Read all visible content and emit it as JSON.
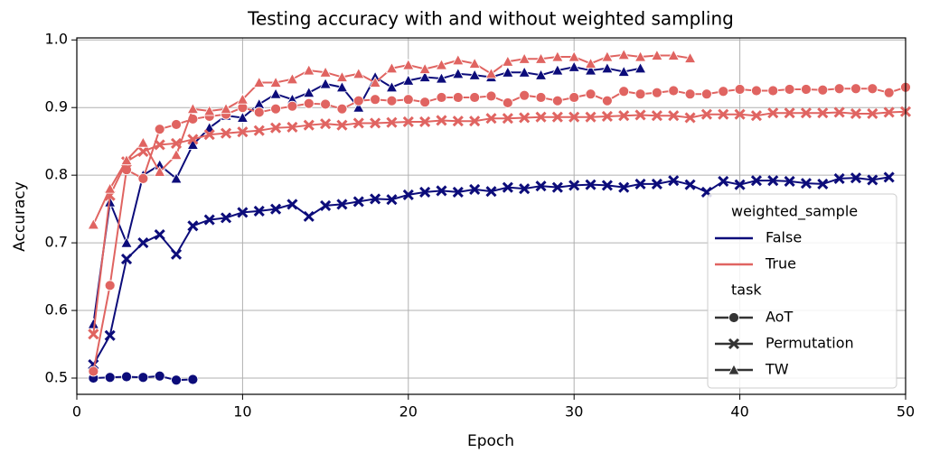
{
  "chart_data": {
    "type": "line",
    "title": "Testing accuracy with and without weighted sampling",
    "x_label": "Epoch",
    "y_label": "Accuracy",
    "xlim": [
      0,
      50
    ],
    "xticks": [
      0,
      10,
      20,
      30,
      40,
      50
    ],
    "ylim": [
      0.476,
      1.003
    ],
    "yticks": [
      0.5,
      0.6,
      0.7,
      0.8,
      0.9,
      {
        "value": 1,
        "label": "1.0"
      }
    ],
    "grid": true,
    "legend": {
      "position": "lower right",
      "hue_title": "weighted_sample",
      "hues": [
        {
          "label": "False",
          "color": "#0c0c7a"
        },
        {
          "label": "True",
          "color": "#e06461"
        }
      ],
      "style_title": "task",
      "styles": [
        {
          "label": "AoT",
          "marker": "circle"
        },
        {
          "label": "Permutation",
          "marker": "x"
        },
        {
          "label": "TW",
          "marker": "triangle"
        }
      ]
    },
    "series": [
      {
        "hue": 0,
        "style": 0,
        "x": [
          1,
          2,
          3,
          4,
          5,
          6,
          7
        ],
        "values": [
          0.5,
          0.501,
          0.502,
          0.501,
          0.503,
          0.497,
          0.498
        ]
      },
      {
        "hue": 0,
        "style": 1,
        "x": [
          1,
          2,
          3,
          4,
          5,
          6,
          7,
          8,
          9,
          10,
          11,
          12,
          13,
          14,
          15,
          16,
          17,
          18,
          19,
          20,
          21,
          22,
          23,
          24,
          25,
          26,
          27,
          28,
          29,
          30,
          31,
          32,
          33,
          34,
          35,
          36,
          37,
          38,
          39,
          40,
          41,
          42,
          43,
          44,
          45,
          46,
          47,
          48,
          49
        ],
        "values": [
          0.52,
          0.563,
          0.676,
          0.7,
          0.712,
          0.683,
          0.725,
          0.734,
          0.737,
          0.745,
          0.747,
          0.75,
          0.757,
          0.739,
          0.755,
          0.757,
          0.761,
          0.765,
          0.764,
          0.771,
          0.775,
          0.777,
          0.775,
          0.779,
          0.776,
          0.782,
          0.78,
          0.784,
          0.782,
          0.785,
          0.786,
          0.785,
          0.782,
          0.787,
          0.787,
          0.792,
          0.786,
          0.775,
          0.791,
          0.786,
          0.792,
          0.792,
          0.791,
          0.788,
          0.787,
          0.795,
          0.796,
          0.793,
          0.797
        ]
      },
      {
        "hue": 0,
        "style": 2,
        "x": [
          1,
          2,
          3,
          4,
          5,
          6,
          7,
          8,
          9,
          10,
          11,
          12,
          13,
          14,
          15,
          16,
          17,
          18,
          19,
          20,
          21,
          22,
          23,
          24,
          25,
          26,
          27,
          28,
          29,
          30,
          31,
          32,
          33,
          34
        ],
        "values": [
          0.58,
          0.76,
          0.7,
          0.8,
          0.815,
          0.795,
          0.845,
          0.87,
          0.888,
          0.885,
          0.905,
          0.92,
          0.912,
          0.922,
          0.935,
          0.93,
          0.9,
          0.945,
          0.93,
          0.94,
          0.945,
          0.943,
          0.95,
          0.948,
          0.945,
          0.952,
          0.952,
          0.948,
          0.955,
          0.96,
          0.955,
          0.958,
          0.953,
          0.958
        ]
      },
      {
        "hue": 1,
        "style": 0,
        "x": [
          1,
          2,
          3,
          4,
          5,
          6,
          7,
          8,
          9,
          10,
          11,
          12,
          13,
          14,
          15,
          16,
          17,
          18,
          19,
          20,
          21,
          22,
          23,
          24,
          25,
          26,
          27,
          28,
          29,
          30,
          31,
          32,
          33,
          34,
          35,
          36,
          37,
          38,
          39,
          40,
          41,
          42,
          43,
          44,
          45,
          46,
          47,
          48,
          49,
          50
        ],
        "values": [
          0.51,
          0.637,
          0.808,
          0.795,
          0.868,
          0.875,
          0.883,
          0.887,
          0.89,
          0.9,
          0.893,
          0.898,
          0.902,
          0.906,
          0.905,
          0.898,
          0.91,
          0.912,
          0.91,
          0.912,
          0.908,
          0.915,
          0.915,
          0.915,
          0.917,
          0.907,
          0.918,
          0.915,
          0.91,
          0.915,
          0.92,
          0.91,
          0.924,
          0.92,
          0.922,
          0.925,
          0.92,
          0.92,
          0.924,
          0.927,
          0.925,
          0.925,
          0.927,
          0.927,
          0.926,
          0.928,
          0.928,
          0.928,
          0.922,
          0.93
        ]
      },
      {
        "hue": 1,
        "style": 1,
        "x": [
          1,
          2,
          3,
          4,
          5,
          6,
          7,
          8,
          9,
          10,
          11,
          12,
          13,
          14,
          15,
          16,
          17,
          18,
          19,
          20,
          21,
          22,
          23,
          24,
          25,
          26,
          27,
          28,
          29,
          30,
          31,
          32,
          33,
          34,
          35,
          36,
          37,
          38,
          39,
          40,
          41,
          42,
          43,
          44,
          45,
          46,
          47,
          48,
          49,
          50
        ],
        "values": [
          0.565,
          0.77,
          0.82,
          0.835,
          0.845,
          0.847,
          0.853,
          0.86,
          0.862,
          0.864,
          0.866,
          0.87,
          0.871,
          0.874,
          0.876,
          0.874,
          0.877,
          0.877,
          0.878,
          0.879,
          0.879,
          0.881,
          0.88,
          0.88,
          0.884,
          0.884,
          0.885,
          0.886,
          0.886,
          0.886,
          0.886,
          0.887,
          0.888,
          0.889,
          0.888,
          0.888,
          0.885,
          0.89,
          0.89,
          0.89,
          0.888,
          0.892,
          0.892,
          0.892,
          0.892,
          0.893,
          0.891,
          0.891,
          0.893,
          0.894
        ]
      },
      {
        "hue": 1,
        "style": 2,
        "x": [
          1,
          2,
          3,
          4,
          5,
          6,
          7,
          8,
          9,
          10,
          11,
          12,
          13,
          14,
          15,
          16,
          17,
          18,
          19,
          20,
          21,
          22,
          23,
          24,
          25,
          26,
          27,
          28,
          29,
          30,
          31,
          32,
          33,
          34,
          35,
          36,
          37
        ],
        "values": [
          0.727,
          0.78,
          0.822,
          0.848,
          0.805,
          0.83,
          0.898,
          0.895,
          0.898,
          0.912,
          0.937,
          0.937,
          0.942,
          0.955,
          0.952,
          0.945,
          0.95,
          0.937,
          0.958,
          0.963,
          0.957,
          0.963,
          0.97,
          0.965,
          0.95,
          0.968,
          0.972,
          0.972,
          0.975,
          0.975,
          0.965,
          0.975,
          0.978,
          0.975,
          0.977,
          0.977,
          0.973
        ]
      }
    ]
  }
}
